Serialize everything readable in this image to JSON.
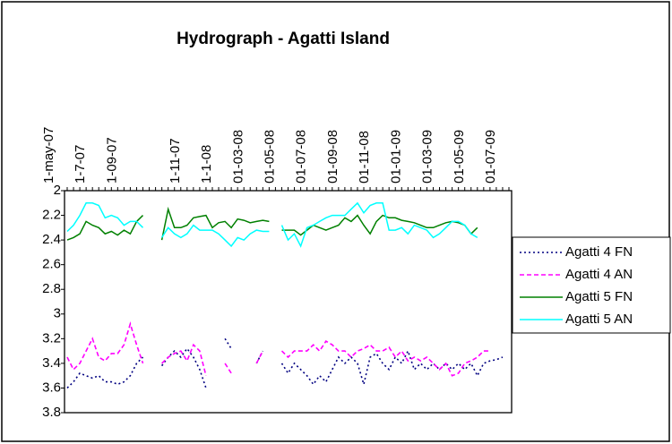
{
  "chart_data": {
    "type": "line",
    "title": "Hydrograph - Agatti Island",
    "categories": [
      "1-may-07",
      null,
      null,
      null,
      null,
      "1-7-07",
      null,
      null,
      null,
      null,
      "1-09-07",
      null,
      null,
      null,
      null,
      null,
      null,
      null,
      null,
      null,
      "1-11-07",
      null,
      null,
      null,
      null,
      "1-1-08",
      null,
      null,
      null,
      null,
      "01-03-08",
      null,
      null,
      null,
      null,
      "01-05-08",
      null,
      null,
      null,
      null,
      "01-07-08",
      null,
      null,
      null,
      null,
      "01-09-08",
      null,
      null,
      null,
      null,
      "01-11-08",
      null,
      null,
      null,
      null,
      "01-01-09",
      null,
      null,
      null,
      null,
      "01-03-09",
      null,
      null,
      null,
      null,
      "01-05-09",
      null,
      null,
      null,
      null,
      "01-07-09"
    ],
    "series": [
      {
        "name": "Agatti 4 FN",
        "color": "#000080",
        "style": "dotted",
        "values": [
          3.6,
          3.55,
          3.48,
          3.5,
          3.52,
          3.5,
          3.55,
          3.55,
          3.57,
          3.55,
          3.5,
          3.4,
          3.35,
          null,
          null,
          3.42,
          3.35,
          3.3,
          3.35,
          3.28,
          3.35,
          3.45,
          3.6,
          null,
          null,
          3.2,
          3.28,
          null,
          null,
          null,
          3.4,
          3.3,
          null,
          null,
          3.4,
          3.48,
          3.4,
          3.45,
          3.5,
          3.57,
          3.5,
          3.55,
          3.45,
          3.35,
          3.4,
          3.35,
          3.4,
          3.57,
          3.35,
          3.32,
          3.4,
          3.45,
          3.35,
          3.4,
          3.3,
          3.45,
          3.4,
          3.45,
          3.4,
          3.45,
          3.4,
          3.45,
          3.4,
          3.45,
          3.4,
          3.5,
          3.4,
          3.38,
          3.37,
          3.35,
          null
        ]
      },
      {
        "name": "Agatti 4 AN",
        "color": "#ff00ff",
        "style": "dashed",
        "values": [
          3.35,
          3.45,
          3.4,
          3.3,
          3.2,
          3.35,
          3.38,
          3.32,
          3.32,
          3.25,
          3.08,
          3.25,
          3.4,
          null,
          null,
          3.4,
          3.35,
          3.32,
          3.3,
          3.38,
          3.25,
          3.3,
          3.5,
          null,
          null,
          3.4,
          3.48,
          null,
          null,
          null,
          3.4,
          3.3,
          null,
          null,
          3.3,
          3.35,
          3.3,
          3.3,
          3.3,
          3.25,
          3.3,
          3.22,
          3.25,
          3.3,
          3.3,
          3.35,
          3.3,
          3.28,
          3.25,
          3.3,
          3.3,
          3.27,
          3.35,
          3.3,
          3.38,
          3.35,
          3.38,
          3.35,
          3.4,
          3.45,
          3.4,
          3.5,
          3.48,
          3.4,
          3.38,
          3.35,
          3.3,
          3.3,
          null,
          null,
          null
        ]
      },
      {
        "name": "Agatti 5 FN",
        "color": "#008000",
        "style": "solid",
        "values": [
          2.4,
          2.38,
          2.35,
          2.25,
          2.28,
          2.3,
          2.35,
          2.33,
          2.36,
          2.32,
          2.35,
          2.25,
          2.2,
          null,
          null,
          2.4,
          2.15,
          2.3,
          2.3,
          2.28,
          2.22,
          2.21,
          2.2,
          2.3,
          2.26,
          2.25,
          2.3,
          2.23,
          2.24,
          2.26,
          2.25,
          2.24,
          2.25,
          null,
          2.32,
          2.32,
          2.32,
          2.36,
          2.32,
          2.28,
          2.3,
          2.32,
          2.3,
          2.28,
          2.22,
          2.25,
          2.2,
          2.28,
          2.35,
          2.25,
          2.2,
          2.22,
          2.22,
          2.24,
          2.25,
          2.26,
          2.28,
          2.3,
          2.3,
          2.28,
          2.26,
          2.25,
          2.26,
          2.28,
          2.35,
          2.3,
          null,
          null,
          null,
          null,
          null
        ]
      },
      {
        "name": "Agatti 5 AN",
        "color": "#00ffff",
        "style": "solid",
        "values": [
          2.33,
          2.28,
          2.2,
          2.1,
          2.1,
          2.12,
          2.22,
          2.2,
          2.22,
          2.28,
          2.25,
          2.25,
          2.3,
          null,
          null,
          2.38,
          2.3,
          2.35,
          2.38,
          2.35,
          2.28,
          2.32,
          2.32,
          2.32,
          2.35,
          2.4,
          2.45,
          2.38,
          2.4,
          2.35,
          2.32,
          2.33,
          2.33,
          null,
          2.28,
          2.4,
          2.35,
          2.45,
          2.3,
          2.28,
          2.25,
          2.22,
          2.2,
          2.2,
          2.2,
          2.15,
          2.1,
          2.18,
          2.12,
          2.1,
          2.1,
          2.32,
          2.32,
          2.3,
          2.35,
          2.28,
          2.3,
          2.32,
          2.38,
          2.35,
          2.3,
          2.25,
          2.25,
          2.28,
          2.35,
          2.38,
          null,
          null,
          null,
          null,
          null
        ]
      }
    ],
    "ylim": [
      2,
      3.8
    ],
    "y_inverted": true,
    "yticks": [
      2,
      2.2,
      2.4,
      2.6,
      2.8,
      3,
      3.2,
      3.4,
      3.6,
      3.8
    ],
    "x_axis_position": "top",
    "grid": false,
    "legend": "right"
  }
}
